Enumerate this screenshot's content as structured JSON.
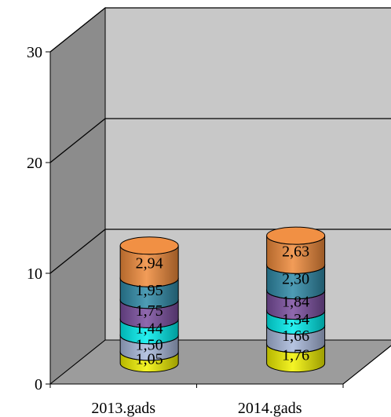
{
  "chart_data": {
    "type": "bar",
    "style": "3d-stacked-cylinder",
    "categories": [
      "2013.gads",
      "2014.gads"
    ],
    "series": [
      {
        "values": [
          1.05,
          1.76
        ],
        "labels": [
          "1,05",
          "1,76"
        ],
        "color": "#f2f200"
      },
      {
        "values": [
          1.5,
          1.66
        ],
        "labels": [
          "1,50",
          "1,66"
        ],
        "color": "#a9b9dc"
      },
      {
        "values": [
          1.44,
          1.34
        ],
        "labels": [
          "1,44",
          "1,34"
        ],
        "color": "#00eeee"
      },
      {
        "values": [
          1.75,
          1.84
        ],
        "labels": [
          "1,75",
          "1,84"
        ],
        "color": "#7b4fa0"
      },
      {
        "values": [
          1.95,
          2.3
        ],
        "labels": [
          "1,95",
          "2,30"
        ],
        "color": "#2f8aa8"
      },
      {
        "values": [
          2.94,
          2.63
        ],
        "labels": [
          "2,94",
          "2,63"
        ],
        "color": "#f08a3a"
      }
    ],
    "yticks": [
      "0",
      "10",
      "20",
      "30"
    ],
    "ylim": [
      0,
      30
    ],
    "grid": true,
    "legend": "none",
    "colors": {
      "back_wall": "#c8c8c8",
      "side_wall": "#8c8c8c",
      "floor": "#9c9c9c",
      "gridline": "#000000"
    }
  }
}
